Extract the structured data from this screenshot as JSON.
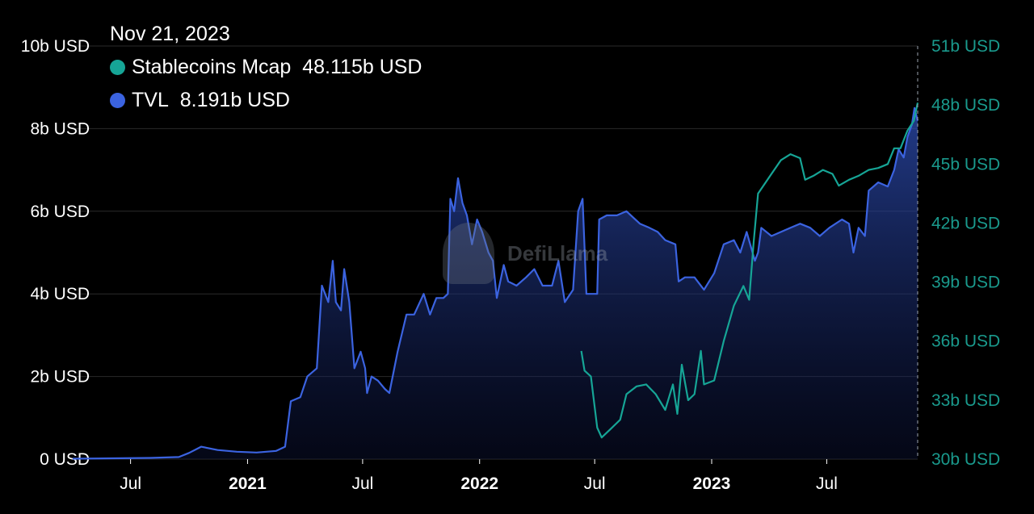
{
  "chart_data": {
    "type": "line",
    "hover_date": "Nov 21, 2023",
    "watermark": "DefiLlama",
    "colors": {
      "tvl": "#3b63e0",
      "stablecoins": "#16a596",
      "right_axis_text": "#1a9a8d"
    },
    "x_ticks": [
      {
        "label": "Jul",
        "date": "2020-07-01",
        "bold": false
      },
      {
        "label": "2021",
        "date": "2021-01-01",
        "bold": true
      },
      {
        "label": "Jul",
        "date": "2021-07-01",
        "bold": false
      },
      {
        "label": "2022",
        "date": "2022-01-01",
        "bold": true
      },
      {
        "label": "Jul",
        "date": "2022-07-01",
        "bold": false
      },
      {
        "label": "2023",
        "date": "2023-01-01",
        "bold": true
      },
      {
        "label": "Jul",
        "date": "2023-07-01",
        "bold": false
      }
    ],
    "x_range": [
      "2020-04-01",
      "2023-11-21"
    ],
    "y_left": {
      "ticks": [
        "0 USD",
        "2b USD",
        "4b USD",
        "6b USD",
        "8b USD",
        "10b USD"
      ],
      "values": [
        0,
        2,
        4,
        6,
        8,
        10
      ],
      "range": [
        0,
        10
      ],
      "unit": "b USD"
    },
    "y_right": {
      "ticks": [
        "30b USD",
        "33b USD",
        "36b USD",
        "39b USD",
        "42b USD",
        "45b USD",
        "48b USD",
        "51b USD"
      ],
      "values": [
        30,
        33,
        36,
        39,
        42,
        45,
        48,
        51
      ],
      "range": [
        30,
        51
      ],
      "unit": "b USD"
    },
    "grid": true,
    "series": [
      {
        "name": "TVL",
        "axis": "left",
        "legend_value": "8.191b USD",
        "area": true,
        "points": [
          [
            "2020-04-01",
            0.01
          ],
          [
            "2020-06-01",
            0.02
          ],
          [
            "2020-08-01",
            0.03
          ],
          [
            "2020-09-15",
            0.05
          ],
          [
            "2020-10-01",
            0.15
          ],
          [
            "2020-10-20",
            0.3
          ],
          [
            "2020-11-15",
            0.22
          ],
          [
            "2020-12-15",
            0.18
          ],
          [
            "2021-01-15",
            0.16
          ],
          [
            "2021-02-15",
            0.2
          ],
          [
            "2021-03-01",
            0.3
          ],
          [
            "2021-03-10",
            1.4
          ],
          [
            "2021-03-25",
            1.5
          ],
          [
            "2021-04-05",
            2.0
          ],
          [
            "2021-04-20",
            2.2
          ],
          [
            "2021-04-28",
            4.2
          ],
          [
            "2021-05-08",
            3.8
          ],
          [
            "2021-05-15",
            4.8
          ],
          [
            "2021-05-20",
            3.8
          ],
          [
            "2021-05-28",
            3.6
          ],
          [
            "2021-06-02",
            4.6
          ],
          [
            "2021-06-10",
            3.8
          ],
          [
            "2021-06-18",
            2.2
          ],
          [
            "2021-06-28",
            2.6
          ],
          [
            "2021-07-05",
            2.2
          ],
          [
            "2021-07-08",
            1.6
          ],
          [
            "2021-07-15",
            2.0
          ],
          [
            "2021-07-25",
            1.9
          ],
          [
            "2021-08-05",
            1.7
          ],
          [
            "2021-08-12",
            1.6
          ],
          [
            "2021-08-25",
            2.6
          ],
          [
            "2021-09-08",
            3.5
          ],
          [
            "2021-09-20",
            3.5
          ],
          [
            "2021-10-05",
            4.0
          ],
          [
            "2021-10-15",
            3.5
          ],
          [
            "2021-10-25",
            3.9
          ],
          [
            "2021-11-05",
            3.9
          ],
          [
            "2021-11-12",
            4.0
          ],
          [
            "2021-11-16",
            6.3
          ],
          [
            "2021-11-22",
            6.0
          ],
          [
            "2021-11-28",
            6.8
          ],
          [
            "2021-12-05",
            6.2
          ],
          [
            "2021-12-12",
            5.9
          ],
          [
            "2021-12-20",
            5.2
          ],
          [
            "2021-12-28",
            5.8
          ],
          [
            "2022-01-05",
            5.5
          ],
          [
            "2022-01-15",
            5.0
          ],
          [
            "2022-01-22",
            4.8
          ],
          [
            "2022-01-28",
            3.9
          ],
          [
            "2022-02-08",
            4.7
          ],
          [
            "2022-02-15",
            4.3
          ],
          [
            "2022-02-28",
            4.2
          ],
          [
            "2022-03-15",
            4.4
          ],
          [
            "2022-03-28",
            4.6
          ],
          [
            "2022-04-10",
            4.2
          ],
          [
            "2022-04-25",
            4.2
          ],
          [
            "2022-05-05",
            4.8
          ],
          [
            "2022-05-15",
            3.8
          ],
          [
            "2022-05-28",
            4.1
          ],
          [
            "2022-06-05",
            6.0
          ],
          [
            "2022-06-12",
            6.3
          ],
          [
            "2022-06-18",
            4.0
          ],
          [
            "2022-06-25",
            4.0
          ],
          [
            "2022-07-05",
            4.0
          ],
          [
            "2022-07-08",
            5.8
          ],
          [
            "2022-07-20",
            5.9
          ],
          [
            "2022-08-05",
            5.9
          ],
          [
            "2022-08-20",
            6.0
          ],
          [
            "2022-09-10",
            5.7
          ],
          [
            "2022-09-25",
            5.6
          ],
          [
            "2022-10-08",
            5.5
          ],
          [
            "2022-10-20",
            5.3
          ],
          [
            "2022-11-05",
            5.2
          ],
          [
            "2022-11-10",
            4.3
          ],
          [
            "2022-11-20",
            4.4
          ],
          [
            "2022-12-05",
            4.4
          ],
          [
            "2022-12-20",
            4.1
          ],
          [
            "2023-01-05",
            4.5
          ],
          [
            "2023-01-20",
            5.2
          ],
          [
            "2023-02-05",
            5.3
          ],
          [
            "2023-02-15",
            5.0
          ],
          [
            "2023-02-25",
            5.5
          ],
          [
            "2023-03-10",
            4.8
          ],
          [
            "2023-03-15",
            5.0
          ],
          [
            "2023-03-20",
            5.6
          ],
          [
            "2023-04-05",
            5.4
          ],
          [
            "2023-04-20",
            5.5
          ],
          [
            "2023-05-05",
            5.6
          ],
          [
            "2023-05-20",
            5.7
          ],
          [
            "2023-06-05",
            5.6
          ],
          [
            "2023-06-20",
            5.4
          ],
          [
            "2023-07-05",
            5.6
          ],
          [
            "2023-07-25",
            5.8
          ],
          [
            "2023-08-05",
            5.7
          ],
          [
            "2023-08-12",
            5.0
          ],
          [
            "2023-08-20",
            5.6
          ],
          [
            "2023-08-30",
            5.4
          ],
          [
            "2023-09-05",
            6.5
          ],
          [
            "2023-09-20",
            6.7
          ],
          [
            "2023-10-05",
            6.6
          ],
          [
            "2023-10-15",
            7.0
          ],
          [
            "2023-10-22",
            7.5
          ],
          [
            "2023-10-30",
            7.3
          ],
          [
            "2023-11-05",
            7.8
          ],
          [
            "2023-11-12",
            8.1
          ],
          [
            "2023-11-16",
            8.5
          ],
          [
            "2023-11-21",
            8.191
          ]
        ]
      },
      {
        "name": "Stablecoins Mcap",
        "axis": "right",
        "legend_value": "48.115b USD",
        "area": false,
        "points": [
          [
            "2022-06-10",
            35.5
          ],
          [
            "2022-06-15",
            34.5
          ],
          [
            "2022-06-25",
            34.2
          ],
          [
            "2022-07-05",
            31.6
          ],
          [
            "2022-07-12",
            31.1
          ],
          [
            "2022-07-25",
            31.5
          ],
          [
            "2022-08-10",
            32.0
          ],
          [
            "2022-08-20",
            33.3
          ],
          [
            "2022-09-05",
            33.7
          ],
          [
            "2022-09-20",
            33.8
          ],
          [
            "2022-10-05",
            33.3
          ],
          [
            "2022-10-20",
            32.5
          ],
          [
            "2022-11-01",
            33.8
          ],
          [
            "2022-11-08",
            32.3
          ],
          [
            "2022-11-15",
            34.8
          ],
          [
            "2022-11-25",
            33.0
          ],
          [
            "2022-12-05",
            33.3
          ],
          [
            "2022-12-15",
            35.5
          ],
          [
            "2022-12-20",
            33.8
          ],
          [
            "2023-01-05",
            34.0
          ],
          [
            "2023-01-20",
            36.0
          ],
          [
            "2023-02-05",
            37.8
          ],
          [
            "2023-02-20",
            38.8
          ],
          [
            "2023-03-01",
            38.1
          ],
          [
            "2023-03-08",
            41.0
          ],
          [
            "2023-03-15",
            43.5
          ],
          [
            "2023-04-05",
            44.5
          ],
          [
            "2023-04-20",
            45.2
          ],
          [
            "2023-05-05",
            45.5
          ],
          [
            "2023-05-20",
            45.3
          ],
          [
            "2023-05-28",
            44.2
          ],
          [
            "2023-06-10",
            44.4
          ],
          [
            "2023-06-25",
            44.7
          ],
          [
            "2023-07-10",
            44.5
          ],
          [
            "2023-07-20",
            43.9
          ],
          [
            "2023-08-05",
            44.2
          ],
          [
            "2023-08-20",
            44.4
          ],
          [
            "2023-09-05",
            44.7
          ],
          [
            "2023-09-20",
            44.8
          ],
          [
            "2023-10-05",
            45.0
          ],
          [
            "2023-10-15",
            45.8
          ],
          [
            "2023-10-25",
            45.8
          ],
          [
            "2023-11-05",
            46.7
          ],
          [
            "2023-11-15",
            47.2
          ],
          [
            "2023-11-21",
            48.115
          ]
        ]
      }
    ]
  }
}
